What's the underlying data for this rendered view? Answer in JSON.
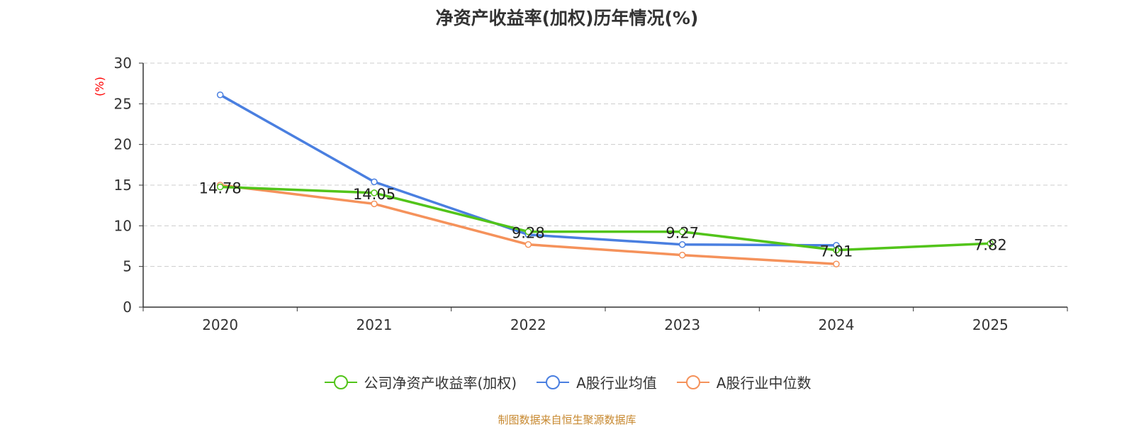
{
  "chart_data": {
    "type": "line",
    "title": "净资产收益率(加权)历年情况(%)",
    "ylabel": "(%)",
    "xlabel": "",
    "categories": [
      "2020",
      "2021",
      "2022",
      "2023",
      "2024",
      "2025"
    ],
    "ylim": [
      0,
      30
    ],
    "yticks": [
      0,
      5,
      10,
      15,
      20,
      25,
      30
    ],
    "grid": true,
    "legend_position": "bottom",
    "series": [
      {
        "name": "公司净资产收益率(加权)",
        "color": "#52c41a",
        "values": [
          14.78,
          14.05,
          9.28,
          9.27,
          7.01,
          7.82
        ],
        "labels": [
          "14.78",
          "14.05",
          "9.28",
          "9.27",
          "7.01",
          "7.82"
        ],
        "show_labels": true
      },
      {
        "name": "A股行业均值",
        "color": "#4a7fe0",
        "values": [
          26.1,
          15.4,
          8.9,
          7.7,
          7.6,
          null
        ],
        "show_labels": false
      },
      {
        "name": "A股行业中位数",
        "color": "#f5925b",
        "values": [
          15.0,
          12.7,
          7.7,
          6.4,
          5.3,
          null
        ],
        "show_labels": false
      }
    ],
    "source": "制图数据来自恒生聚源数据库"
  }
}
